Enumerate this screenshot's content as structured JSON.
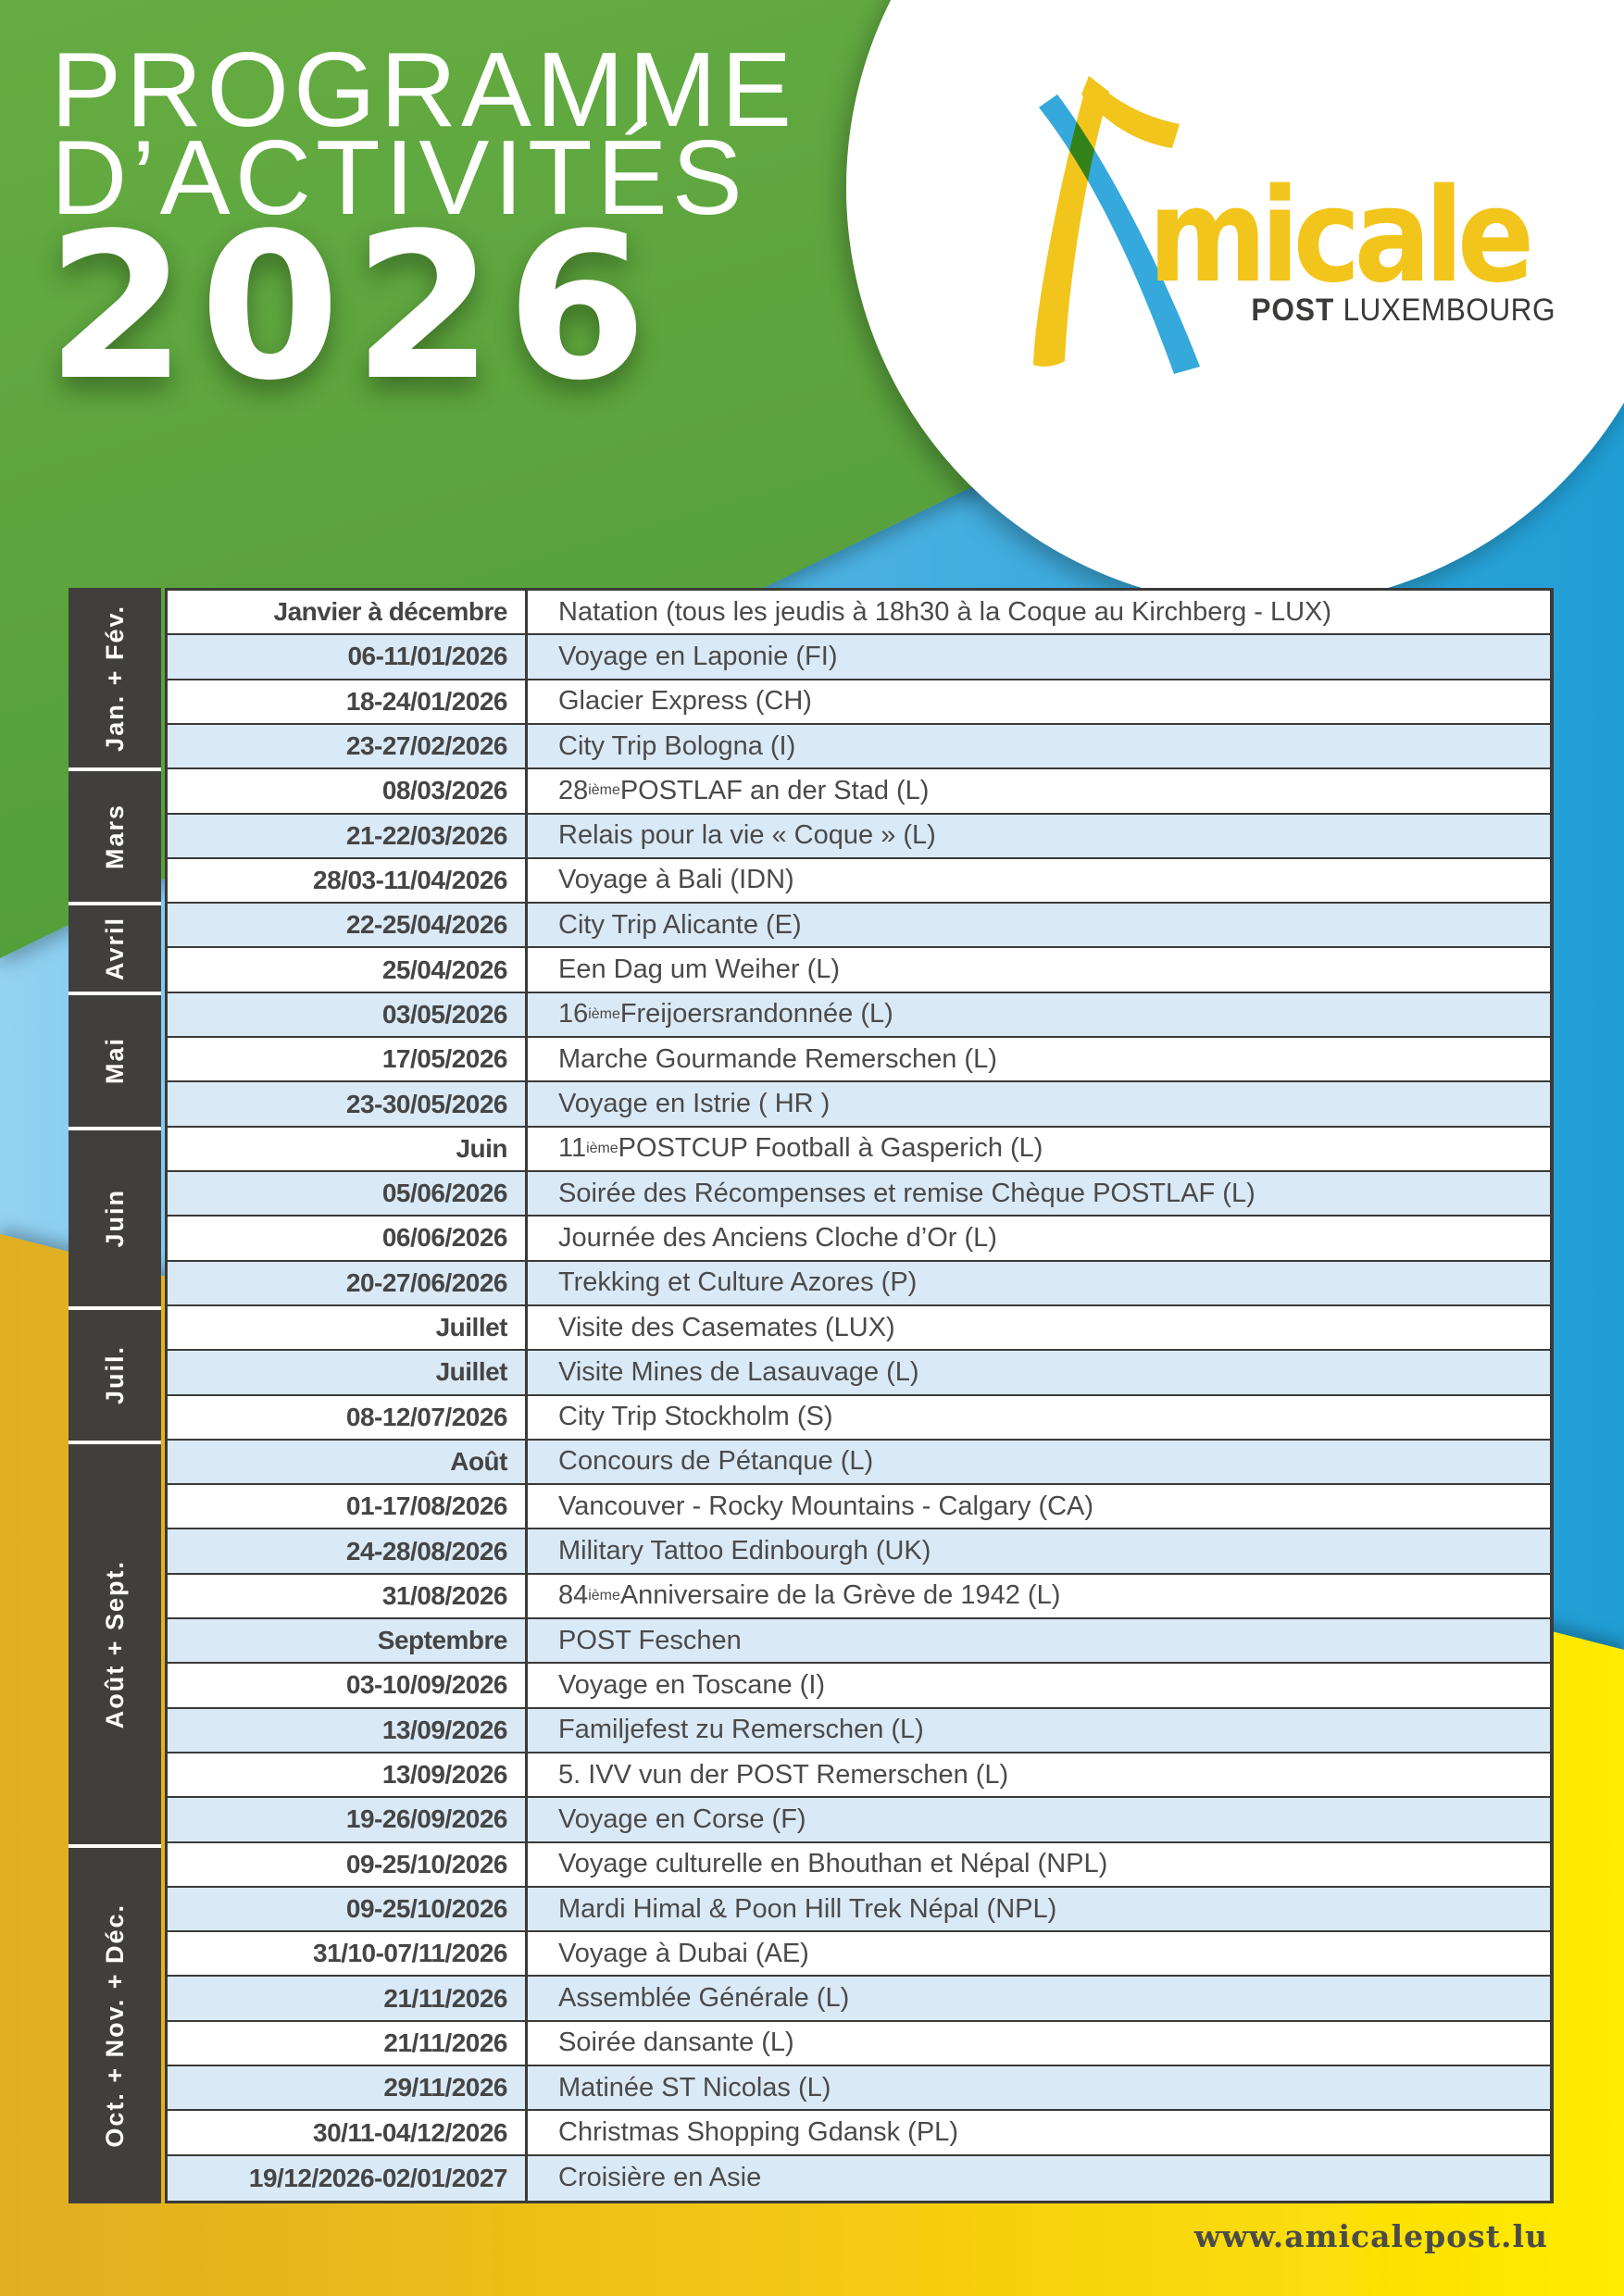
{
  "poster": {
    "title_line1": "PROGRAMME",
    "title_line2": "D’ACTIVITÉS",
    "year": "2026",
    "website": "www.amicalepost.lu"
  },
  "logo": {
    "mark": "amicale-a-logo",
    "brand": "micale",
    "org_bold": "POST",
    "org_rest": " LUXEMBOURG"
  },
  "palette": {
    "green": "#58a23c",
    "blue_left": "#8ecdf0",
    "blue_right": "#1f9ed5",
    "yellow_left": "#dfae22",
    "yellow_right": "#ffec00",
    "month_column_gray": "#403f3d",
    "row_alt_blue": "#dae9f6",
    "border_dark": "#3a3a39",
    "brand_yellow": "#f2c51d",
    "text_dark": "#4a4a4a"
  },
  "table": {
    "month_groups": [
      {
        "label": "Jan. + Fév.",
        "row_span": 4
      },
      {
        "label": "Mars",
        "row_span": 3
      },
      {
        "label": "Avril",
        "row_span": 2
      },
      {
        "label": "Mai",
        "row_span": 3
      },
      {
        "label": "Juin",
        "row_span": 4
      },
      {
        "label": "Juil.",
        "row_span": 3
      },
      {
        "label": "Août + Sept.",
        "row_span": 9
      },
      {
        "label": "Oct. + Nov. + Déc.",
        "row_span": 8
      }
    ],
    "rows": [
      {
        "date": "Janvier à décembre",
        "activity": "Natation (tous les jeudis à 18h30 à la Coque au Kirchberg - LUX)"
      },
      {
        "date": "06-11/01/2026",
        "activity": "Voyage en Laponie (FI)"
      },
      {
        "date": "18-24/01/2026",
        "activity": "Glacier Express (CH)"
      },
      {
        "date": "23-27/02/2026",
        "activity": "City Trip Bologna (I)"
      },
      {
        "date": "08/03/2026",
        "activity": "28^{ième} POSTLAF an der Stad (L)"
      },
      {
        "date": "21-22/03/2026",
        "activity": "Relais pour la vie « Coque » (L)"
      },
      {
        "date": "28/03-11/04/2026",
        "activity": "Voyage à Bali (IDN)"
      },
      {
        "date": "22-25/04/2026",
        "activity": "City Trip Alicante (E)"
      },
      {
        "date": "25/04/2026",
        "activity": "Een Dag um Weiher (L)"
      },
      {
        "date": "03/05/2026",
        "activity": "16^{ième} Freijoersrandonnée (L)"
      },
      {
        "date": "17/05/2026",
        "activity": "Marche Gourmande Remerschen (L)"
      },
      {
        "date": "23-30/05/2026",
        "activity": "Voyage en Istrie ( HR )"
      },
      {
        "date": "Juin",
        "activity": "11^{ième} POSTCUP Football à Gasperich (L)"
      },
      {
        "date": "05/06/2026",
        "activity": "Soirée des Récompenses et remise Chèque POSTLAF (L)"
      },
      {
        "date": "06/06/2026",
        "activity": "Journée des Anciens Cloche d’Or (L)"
      },
      {
        "date": "20-27/06/2026",
        "activity": "Trekking et Culture Azores (P)"
      },
      {
        "date": "Juillet",
        "activity": "Visite des Casemates (LUX)"
      },
      {
        "date": "Juillet",
        "activity": "Visite Mines de Lasauvage (L)"
      },
      {
        "date": "08-12/07/2026",
        "activity": "City Trip Stockholm (S)"
      },
      {
        "date": "Août",
        "activity": "Concours de Pétanque (L)"
      },
      {
        "date": "01-17/08/2026",
        "activity": "Vancouver - Rocky Mountains - Calgary (CA)"
      },
      {
        "date": "24-28/08/2026",
        "activity": "Military Tattoo Edinbourgh (UK)"
      },
      {
        "date": "31/08/2026",
        "activity": "84^{ième} Anniversaire de la Grève de 1942 (L)"
      },
      {
        "date": "Septembre",
        "activity": "POST Feschen"
      },
      {
        "date": "03-10/09/2026",
        "activity": "Voyage en Toscane (I)"
      },
      {
        "date": "13/09/2026",
        "activity": "Familjefest zu Remerschen (L)"
      },
      {
        "date": "13/09/2026",
        "activity": "5. IVV vun der POST Remerschen (L)"
      },
      {
        "date": "19-26/09/2026",
        "activity": "Voyage en Corse (F)"
      },
      {
        "date": "09-25/10/2026",
        "activity": "Voyage culturelle en Bhouthan et Népal (NPL)"
      },
      {
        "date": "09-25/10/2026",
        "activity": "Mardi Himal & Poon Hill Trek Népal (NPL)"
      },
      {
        "date": "31/10-07/11/2026",
        "activity": "Voyage à Dubai (AE)"
      },
      {
        "date": "21/11/2026",
        "activity": "Assemblée Générale (L)"
      },
      {
        "date": "21/11/2026",
        "activity": "Soirée dansante (L)"
      },
      {
        "date": "29/11/2026",
        "activity": "Matinée ST Nicolas (L)"
      },
      {
        "date": "30/11-04/12/2026",
        "activity": "Christmas Shopping Gdansk (PL)"
      },
      {
        "date": "19/12/2026-02/01/2027",
        "activity": "Croisière en Asie"
      }
    ]
  }
}
